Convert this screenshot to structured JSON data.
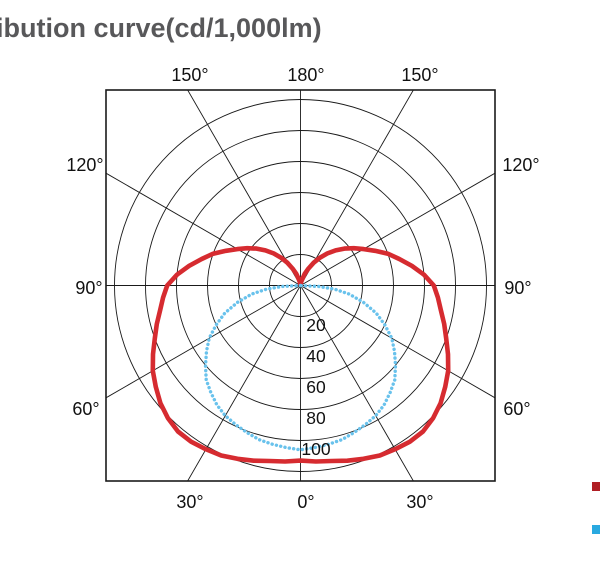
{
  "title": {
    "text": "ibution curve(cd/1,000lm)",
    "color": "#58585a"
  },
  "chart_data": {
    "type": "line",
    "subtype": "polar-photometric-distribution",
    "title": "ibution curve(cd/1,000lm)",
    "units": "cd/1,000lm",
    "grid": true,
    "radial_axis": {
      "rings": [
        20,
        40,
        60,
        80,
        100,
        120
      ],
      "tick_labels": [
        "20",
        "40",
        "60",
        "80",
        "100"
      ],
      "max": 120
    },
    "angle_axis": {
      "step_deg": 30,
      "labels": [
        "150°",
        "180°",
        "150°",
        "120°",
        "120°",
        "90°",
        "90°",
        "60°",
        "60°",
        "30°",
        "0°",
        "30°"
      ]
    },
    "series": [
      {
        "name": "series-red",
        "color": "#d62b30",
        "line_style": "solid",
        "points": [
          [
            0,
            113
          ],
          [
            5,
            114
          ],
          [
            10,
            115
          ],
          [
            15,
            117
          ],
          [
            20,
            119
          ],
          [
            25,
            121
          ],
          [
            30,
            122
          ],
          [
            35,
            123
          ],
          [
            40,
            123
          ],
          [
            45,
            121
          ],
          [
            50,
            118
          ],
          [
            55,
            114
          ],
          [
            60,
            110
          ],
          [
            65,
            105
          ],
          [
            70,
            100
          ],
          [
            75,
            96
          ],
          [
            80,
            92
          ],
          [
            85,
            89
          ],
          [
            90,
            86
          ],
          [
            95,
            80
          ],
          [
            100,
            73
          ],
          [
            105,
            66
          ],
          [
            110,
            60
          ],
          [
            115,
            53
          ],
          [
            120,
            47
          ],
          [
            125,
            42
          ],
          [
            130,
            37
          ],
          [
            135,
            32
          ],
          [
            140,
            27
          ],
          [
            145,
            22
          ],
          [
            150,
            17
          ],
          [
            155,
            12
          ],
          [
            160,
            8
          ],
          [
            165,
            4
          ],
          [
            170,
            2
          ],
          [
            175,
            1
          ],
          [
            180,
            0
          ]
        ]
      },
      {
        "name": "series-blue",
        "color": "#69c2ec",
        "line_style": "dotted",
        "points": [
          [
            0,
            106
          ],
          [
            5,
            105
          ],
          [
            10,
            104
          ],
          [
            15,
            103
          ],
          [
            20,
            101
          ],
          [
            25,
            99
          ],
          [
            30,
            97
          ],
          [
            35,
            94
          ],
          [
            40,
            90
          ],
          [
            45,
            86
          ],
          [
            50,
            80
          ],
          [
            55,
            74
          ],
          [
            60,
            68
          ],
          [
            65,
            60
          ],
          [
            70,
            52
          ],
          [
            75,
            42
          ],
          [
            80,
            32
          ],
          [
            84,
            22
          ],
          [
            87,
            12
          ],
          [
            90,
            0
          ]
        ]
      }
    ],
    "legend": {
      "position": "right-edge-clipped",
      "entries": [
        {
          "name": "legend-red",
          "swatch_color": "#b01e24",
          "label": ""
        },
        {
          "name": "legend-blue",
          "swatch_color": "#29a9e0",
          "label": ""
        }
      ]
    }
  }
}
